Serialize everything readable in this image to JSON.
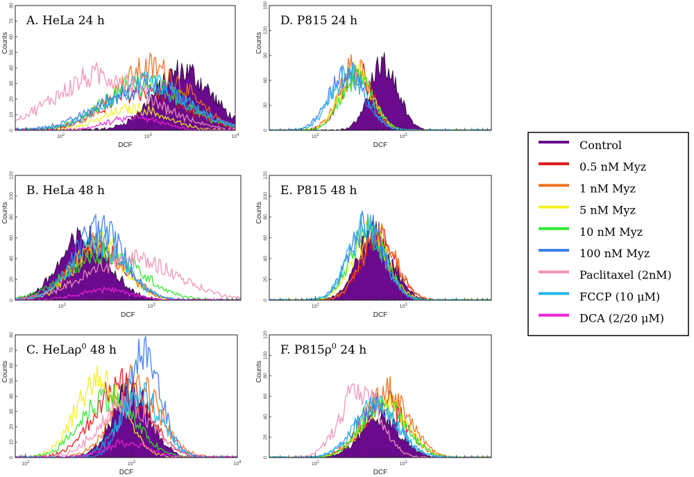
{
  "chart_data": [
    {
      "type": "histogram",
      "title": "A. HeLa 24 h",
      "xlabel": "DCF",
      "ylabel": "Counts",
      "xscale": "log",
      "xlim": [
        30,
        10000
      ],
      "ylim": [
        0,
        80
      ],
      "yticks": [
        "0",
        "10",
        "20",
        "30",
        "40",
        "50",
        "60",
        "70",
        "80"
      ],
      "xticks": [
        {
          "base": "10",
          "exp": "2"
        },
        {
          "base": "10",
          "exp": "3"
        },
        {
          "base": "10",
          "exp": "4"
        }
      ],
      "series": [
        {
          "name": "Control",
          "peak_dcf": 2500,
          "width": 0.33,
          "height": 38
        },
        {
          "name": "0.5 nM Myz",
          "peak_dcf": 900,
          "width": 0.45,
          "height": 25
        },
        {
          "name": "1 nM Myz",
          "peak_dcf": 1100,
          "width": 0.42,
          "height": 40
        },
        {
          "name": "5 nM Myz",
          "peak_dcf": 700,
          "width": 0.35,
          "height": 14
        },
        {
          "name": "10 nM Myz",
          "peak_dcf": 900,
          "width": 0.45,
          "height": 30
        },
        {
          "name": "100 nM Myz",
          "peak_dcf": 900,
          "width": 0.5,
          "height": 27
        },
        {
          "name": "Paclitaxel (2nM)",
          "peak_dcf": 300,
          "width": 0.55,
          "height": 35
        },
        {
          "name": "FCCP (10 μM)",
          "peak_dcf": 1000,
          "width": 0.45,
          "height": 30
        },
        {
          "name": "DCA (2/20 μM)",
          "peak_dcf": 700,
          "width": 0.3,
          "height": 8
        }
      ]
    },
    {
      "type": "histogram",
      "title": "B. HeLa 48 h",
      "xlabel": "DCF",
      "ylabel": "Counts",
      "xscale": "log",
      "xlim": [
        30,
        10000
      ],
      "ylim": [
        0,
        120
      ],
      "yticks": [
        "0",
        "20",
        "40",
        "60",
        "80",
        "100",
        "120"
      ],
      "xticks": [
        {
          "base": "10",
          "exp": "2"
        },
        {
          "base": "10",
          "exp": "3"
        }
      ],
      "series": [
        {
          "name": "Control",
          "peak_dcf": 180,
          "width": 0.28,
          "height": 60
        },
        {
          "name": "0.5 nM Myz",
          "peak_dcf": 250,
          "width": 0.3,
          "height": 50
        },
        {
          "name": "1 nM Myz",
          "peak_dcf": 260,
          "width": 0.3,
          "height": 55
        },
        {
          "name": "5 nM Myz",
          "peak_dcf": 260,
          "width": 0.28,
          "height": 55
        },
        {
          "name": "10 nM Myz",
          "peak_dcf": 300,
          "width": 0.4,
          "height": 45
        },
        {
          "name": "100 nM Myz",
          "peak_dcf": 260,
          "width": 0.28,
          "height": 70
        },
        {
          "name": "Paclitaxel (2nM)",
          "peak_dcf": 600,
          "width": 0.5,
          "height": 40
        },
        {
          "name": "FCCP (10 μM)",
          "peak_dcf": 260,
          "width": 0.3,
          "height": 55
        },
        {
          "name": "DCA (2/20 μM)",
          "peak_dcf": 300,
          "width": 0.3,
          "height": 10
        }
      ]
    },
    {
      "type": "histogram",
      "title": "C. HeLaρ0 48 h",
      "xlabel": "DCF",
      "ylabel": "Counts",
      "xscale": "log",
      "xlim": [
        80,
        10000
      ],
      "ylim": [
        0,
        80
      ],
      "yticks": [
        "0",
        "10",
        "20",
        "30",
        "40",
        "50",
        "60",
        "70",
        "80"
      ],
      "xticks": [
        {
          "base": "10",
          "exp": "2"
        },
        {
          "base": "10",
          "exp": "3"
        },
        {
          "base": "10",
          "exp": "4"
        }
      ],
      "series": [
        {
          "name": "Control",
          "peak_dcf": 1000,
          "width": 0.18,
          "height": 45
        },
        {
          "name": "0.5 nM Myz",
          "peak_dcf": 800,
          "width": 0.25,
          "height": 48
        },
        {
          "name": "1 nM Myz",
          "peak_dcf": 1100,
          "width": 0.22,
          "height": 50
        },
        {
          "name": "5 nM Myz",
          "peak_dcf": 500,
          "width": 0.22,
          "height": 52
        },
        {
          "name": "10 nM Myz",
          "peak_dcf": 600,
          "width": 0.25,
          "height": 40
        },
        {
          "name": "100 nM Myz",
          "peak_dcf": 1300,
          "width": 0.16,
          "height": 68
        },
        {
          "name": "Paclitaxel (2nM)",
          "peak_dcf": 900,
          "width": 0.25,
          "height": 35
        },
        {
          "name": "FCCP (10 μM)",
          "peak_dcf": 1200,
          "width": 0.2,
          "height": 40
        },
        {
          "name": "DCA (2/20 μM)",
          "peak_dcf": 900,
          "width": 0.2,
          "height": 10
        }
      ]
    },
    {
      "type": "histogram",
      "title": "D. P815 24 h",
      "xlabel": "DCF",
      "ylabel": "Counts",
      "xscale": "log",
      "xlim": [
        30,
        10000
      ],
      "ylim": [
        0,
        150
      ],
      "yticks": [
        "0",
        "30",
        "60",
        "90",
        "120",
        "150"
      ],
      "xticks": [
        {
          "base": "10",
          "exp": "2"
        },
        {
          "base": "10",
          "exp": "3"
        }
      ],
      "series": [
        {
          "name": "Control",
          "peak_dcf": 600,
          "width": 0.16,
          "height": 80
        },
        {
          "name": "0.5 nM Myz",
          "peak_dcf": 290,
          "width": 0.18,
          "height": 72
        },
        {
          "name": "1 nM Myz",
          "peak_dcf": 280,
          "width": 0.18,
          "height": 75
        },
        {
          "name": "5 nM Myz",
          "peak_dcf": 290,
          "width": 0.18,
          "height": 70
        },
        {
          "name": "10 nM Myz",
          "peak_dcf": 300,
          "width": 0.18,
          "height": 65
        },
        {
          "name": "100 nM Myz",
          "peak_dcf": 230,
          "width": 0.2,
          "height": 68
        },
        {
          "name": "FCCP (10 μM)",
          "peak_dcf": 240,
          "width": 0.2,
          "height": 68
        }
      ]
    },
    {
      "type": "histogram",
      "title": "E. P815 48 h",
      "xlabel": "DCF",
      "ylabel": "Counts",
      "xscale": "log",
      "xlim": [
        30,
        10000
      ],
      "ylim": [
        0,
        120
      ],
      "yticks": [
        "0",
        "20",
        "40",
        "60",
        "80",
        "100",
        "120"
      ],
      "xticks": [
        {
          "base": "10",
          "exp": "2"
        },
        {
          "base": "10",
          "exp": "3"
        }
      ],
      "series": [
        {
          "name": "Control",
          "peak_dcf": 480,
          "width": 0.2,
          "height": 65
        },
        {
          "name": "0.5 nM Myz",
          "peak_dcf": 520,
          "width": 0.2,
          "height": 62
        },
        {
          "name": "1 nM Myz",
          "peak_dcf": 520,
          "width": 0.2,
          "height": 62
        },
        {
          "name": "5 nM Myz",
          "peak_dcf": 420,
          "width": 0.2,
          "height": 65
        },
        {
          "name": "10 nM Myz",
          "peak_dcf": 400,
          "width": 0.2,
          "height": 65
        },
        {
          "name": "100 nM Myz",
          "peak_dcf": 380,
          "width": 0.2,
          "height": 72
        },
        {
          "name": "FCCP (10 μM)",
          "peak_dcf": 380,
          "width": 0.2,
          "height": 70
        }
      ]
    },
    {
      "type": "histogram",
      "title": "F. P815ρ0 24 h",
      "xlabel": "DCF",
      "ylabel": "Counts",
      "xscale": "log",
      "xlim": [
        30,
        10000
      ],
      "ylim": [
        0,
        120
      ],
      "yticks": [
        "0",
        "20",
        "40",
        "60",
        "80",
        "100",
        "120"
      ],
      "xticks": [
        {
          "base": "10",
          "exp": "2"
        },
        {
          "base": "10",
          "exp": "3"
        }
      ],
      "series": [
        {
          "name": "Control",
          "peak_dcf": 550,
          "width": 0.22,
          "height": 40
        },
        {
          "name": "0.5 nM Myz",
          "peak_dcf": 600,
          "width": 0.25,
          "height": 55
        },
        {
          "name": "1 nM Myz",
          "peak_dcf": 650,
          "width": 0.25,
          "height": 65
        },
        {
          "name": "5 nM Myz",
          "peak_dcf": 600,
          "width": 0.25,
          "height": 55
        },
        {
          "name": "10 nM Myz",
          "peak_dcf": 600,
          "width": 0.25,
          "height": 52
        },
        {
          "name": "100 nM Myz",
          "peak_dcf": 500,
          "width": 0.25,
          "height": 48
        },
        {
          "name": "Paclitaxel (2nM)",
          "peak_dcf": 320,
          "width": 0.22,
          "height": 68
        },
        {
          "name": "FCCP (10 μM)",
          "peak_dcf": 500,
          "width": 0.25,
          "height": 50
        }
      ]
    }
  ],
  "legend": {
    "items": [
      {
        "label": "Control",
        "color": "#6a0a8c"
      },
      {
        "label": "0.5 nM Myz",
        "color": "#e11414"
      },
      {
        "label": "1 nM Myz",
        "color": "#f07020"
      },
      {
        "label": "5 nM Myz",
        "color": "#f5f020"
      },
      {
        "label": "10 nM Myz",
        "color": "#2ee82e"
      },
      {
        "label": "100 nM Myz",
        "color": "#3a7cf0"
      },
      {
        "label": "Paclitaxel (2nM)",
        "color": "#f090b8"
      },
      {
        "label": "FCCP (10 μM)",
        "color": "#20b4e8"
      },
      {
        "label": "DCA (2/20 μM)",
        "color": "#f020d8"
      }
    ]
  }
}
